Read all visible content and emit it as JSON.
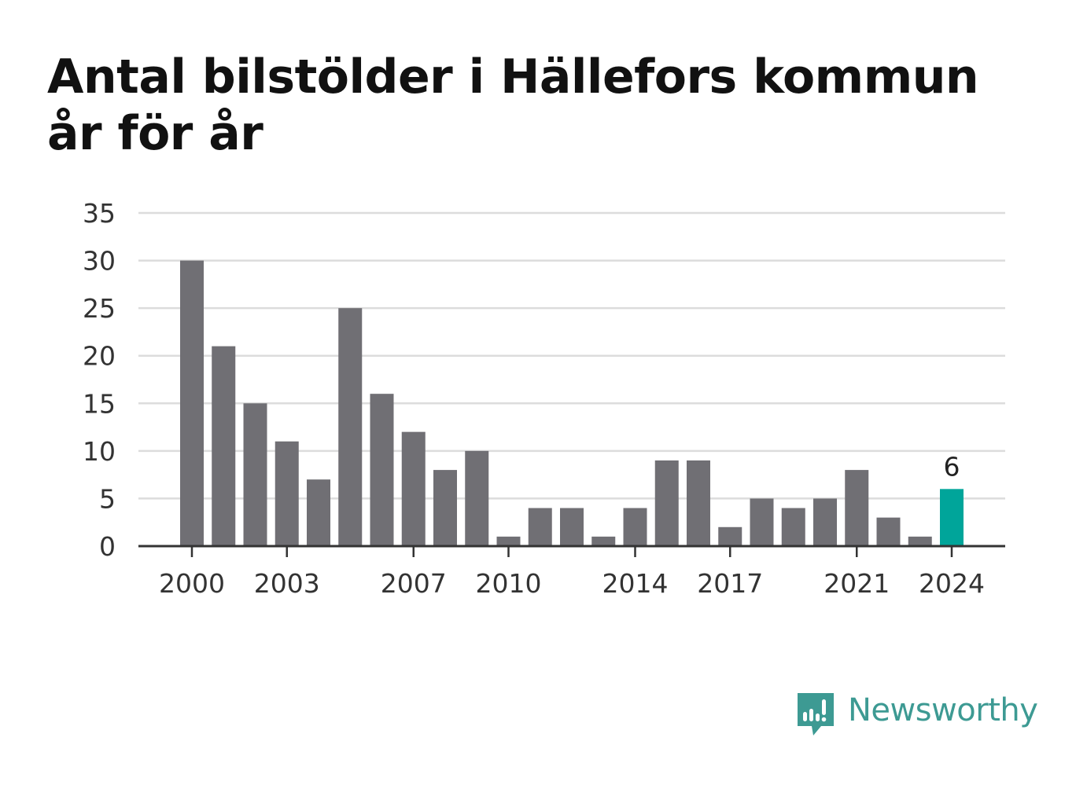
{
  "chart_data": {
    "type": "bar",
    "title": "Antal bilstölder i Hällefors kommun år för år",
    "xlabel": "",
    "ylabel": "",
    "categories": [
      "2000",
      "2001",
      "2002",
      "2003",
      "2004",
      "2005",
      "2006",
      "2007",
      "2008",
      "2009",
      "2010",
      "2011",
      "2012",
      "2013",
      "2014",
      "2015",
      "2016",
      "2017",
      "2018",
      "2019",
      "2020",
      "2021",
      "2022",
      "2023",
      "2024"
    ],
    "values": [
      30,
      21,
      15,
      11,
      7,
      25,
      16,
      12,
      8,
      10,
      1,
      4,
      4,
      1,
      4,
      9,
      9,
      2,
      5,
      4,
      5,
      8,
      3,
      1,
      6
    ],
    "x_tick_labels": [
      "2000",
      "2003",
      "2007",
      "2010",
      "2014",
      "2017",
      "2021",
      "2024"
    ],
    "y_ticks": [
      0,
      5,
      10,
      15,
      20,
      25,
      30,
      35
    ],
    "ylim": [
      0,
      35
    ],
    "grid": true,
    "highlight": {
      "category": "2024",
      "value_label": "6"
    },
    "colors": {
      "bar": "#706f74",
      "highlight": "#00a59a",
      "grid": "#dcdcdc",
      "axis": "#333333"
    }
  },
  "branding": {
    "name": "Newsworthy",
    "icon": "newsworthy-logo-icon",
    "color": "#3d9a93"
  }
}
